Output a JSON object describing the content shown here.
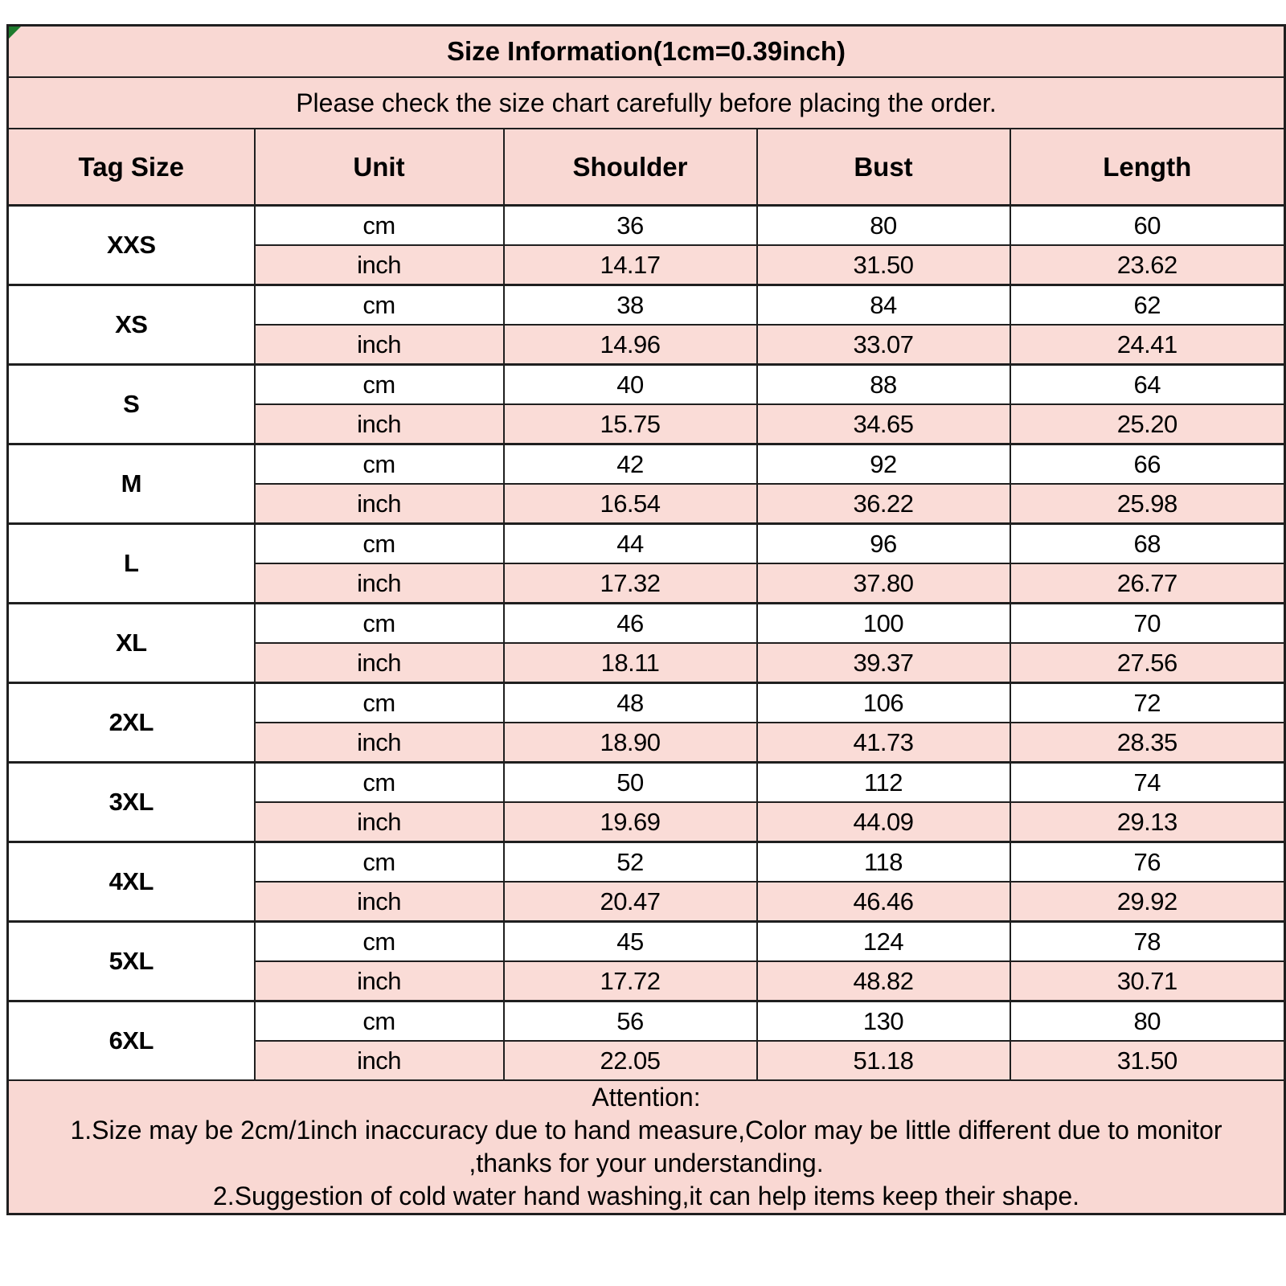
{
  "title": "Size Information(1cm=0.39inch)",
  "subtitle": "Please check the size chart carefully before placing the order.",
  "columns": [
    "Tag Size",
    "Unit",
    "Shoulder",
    "Bust",
    "Length"
  ],
  "unit_labels": [
    "cm",
    "inch"
  ],
  "sizes": [
    {
      "tag": "XXS",
      "cm": [
        "36",
        "80",
        "60"
      ],
      "inch": [
        "14.17",
        "31.50",
        "23.62"
      ]
    },
    {
      "tag": "XS",
      "cm": [
        "38",
        "84",
        "62"
      ],
      "inch": [
        "14.96",
        "33.07",
        "24.41"
      ]
    },
    {
      "tag": "S",
      "cm": [
        "40",
        "88",
        "64"
      ],
      "inch": [
        "15.75",
        "34.65",
        "25.20"
      ]
    },
    {
      "tag": "M",
      "cm": [
        "42",
        "92",
        "66"
      ],
      "inch": [
        "16.54",
        "36.22",
        "25.98"
      ]
    },
    {
      "tag": "L",
      "cm": [
        "44",
        "96",
        "68"
      ],
      "inch": [
        "17.32",
        "37.80",
        "26.77"
      ]
    },
    {
      "tag": "XL",
      "cm": [
        "46",
        "100",
        "70"
      ],
      "inch": [
        "18.11",
        "39.37",
        "27.56"
      ]
    },
    {
      "tag": "2XL",
      "cm": [
        "48",
        "106",
        "72"
      ],
      "inch": [
        "18.90",
        "41.73",
        "28.35"
      ]
    },
    {
      "tag": "3XL",
      "cm": [
        "50",
        "112",
        "74"
      ],
      "inch": [
        "19.69",
        "44.09",
        "29.13"
      ]
    },
    {
      "tag": "4XL",
      "cm": [
        "52",
        "118",
        "76"
      ],
      "inch": [
        "20.47",
        "46.46",
        "29.92"
      ]
    },
    {
      "tag": "5XL",
      "cm": [
        "45",
        "124",
        "78"
      ],
      "inch": [
        "17.72",
        "48.82",
        "30.71"
      ]
    },
    {
      "tag": "6XL",
      "cm": [
        "56",
        "130",
        "80"
      ],
      "inch": [
        "22.05",
        "51.18",
        "31.50"
      ]
    }
  ],
  "attention": {
    "heading": "Attention:",
    "lines": [
      "1.Size may be 2cm/1inch inaccuracy due to hand measure,Color may be little different due to monitor",
      ",thanks for your understanding.",
      "2.Suggestion of cold water hand washing,it can help items keep their shape."
    ]
  },
  "colors": {
    "pink": "#f9d8d3",
    "inch_row_pink": "#fadcd7",
    "row_white": "#ffffff",
    "border": "#1f1f1f",
    "text": "#000000",
    "corner_marker_green": "#1e7b2e"
  }
}
